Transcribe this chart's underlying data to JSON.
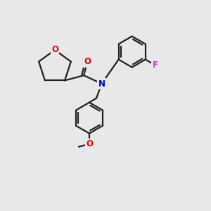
{
  "bg_color": "#e8e8e8",
  "bond_color": "#202020",
  "bond_width": 1.6,
  "atom_colors": {
    "O": "#e00000",
    "N": "#0000cc",
    "F": "#bb44bb",
    "C": "#202020"
  },
  "font_size_atom": 8.5
}
